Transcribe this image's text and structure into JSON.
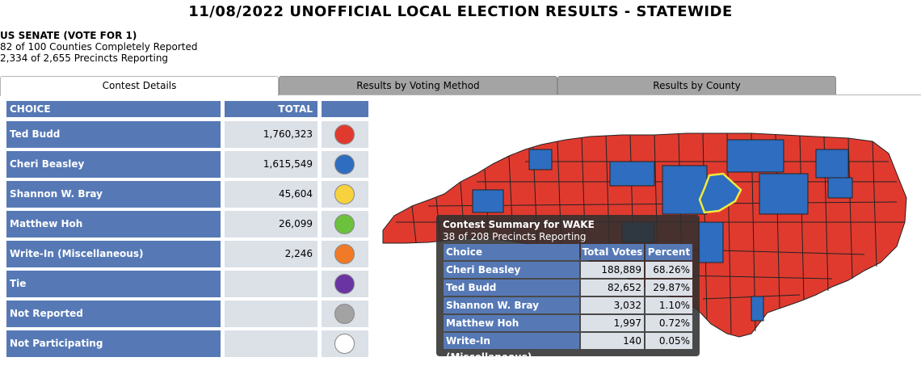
{
  "page_title": "11/08/2022 UNOFFICIAL LOCAL ELECTION RESULTS - STATEWIDE",
  "contest": {
    "name": "US SENATE (VOTE FOR 1)",
    "counties_reported": "82 of 100 Counties Completely Reported",
    "precincts_reporting": "2,334 of 2,655 Precincts Reporting"
  },
  "tabs": [
    {
      "label": "Contest Details",
      "active": true
    },
    {
      "label": "Results by Voting Method",
      "active": false
    },
    {
      "label": "Results by County",
      "active": false
    }
  ],
  "results_table": {
    "header": {
      "choice": "CHOICE",
      "total": "TOTAL"
    },
    "rows": [
      {
        "choice": "Ted Budd",
        "total": "1,760,323",
        "color": "#e03a2f"
      },
      {
        "choice": "Cheri Beasley",
        "total": "1,615,549",
        "color": "#2e6dbf"
      },
      {
        "choice": "Shannon W. Bray",
        "total": "45,604",
        "color": "#f7d23e"
      },
      {
        "choice": "Matthew Hoh",
        "total": "26,099",
        "color": "#6cc13d"
      },
      {
        "choice": "Write-In (Miscellaneous)",
        "total": "2,246",
        "color": "#f07a28"
      },
      {
        "choice": "Tie",
        "total": "",
        "color": "#6a34a3"
      },
      {
        "choice": "Not Reported",
        "total": "",
        "color": "#a3a3a3"
      },
      {
        "choice": "Not Participating",
        "total": "",
        "color": "#ffffff"
      }
    ]
  },
  "map": {
    "colors": {
      "budd": "#e03a2f",
      "beasley": "#2e6dbf",
      "highlight": "#f2ea3c",
      "border": "#222222"
    }
  },
  "tooltip": {
    "title": "Contest Summary for WAKE",
    "subtitle": "38 of 208 Precincts Reporting",
    "header": {
      "choice": "Choice",
      "votes": "Total Votes",
      "percent": "Percent"
    },
    "rows": [
      {
        "choice": "Cheri Beasley",
        "votes": "188,889",
        "percent": "68.26%"
      },
      {
        "choice": "Ted Budd",
        "votes": "82,652",
        "percent": "29.87%"
      },
      {
        "choice": "Shannon W. Bray",
        "votes": "3,032",
        "percent": "1.10%"
      },
      {
        "choice": "Matthew Hoh",
        "votes": "1,997",
        "percent": "0.72%"
      },
      {
        "choice": "Write-In (Miscellaneous)",
        "votes": "140",
        "percent": "0.05%"
      }
    ]
  }
}
